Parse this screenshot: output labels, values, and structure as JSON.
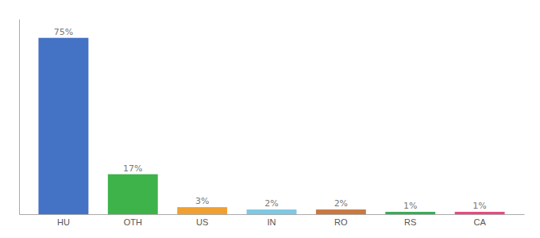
{
  "chart_data": {
    "type": "bar",
    "categories": [
      "HU",
      "OTH",
      "US",
      "IN",
      "RO",
      "RS",
      "CA"
    ],
    "values": [
      75,
      17,
      3,
      2,
      2,
      1,
      1
    ],
    "colors": [
      "#4472c4",
      "#3db34a",
      "#f0a030",
      "#7ec8e3",
      "#c87840",
      "#3aaa55",
      "#e8487c"
    ],
    "ylim": [
      0,
      83
    ],
    "data_labels": true,
    "value_labels": [
      "75%",
      "17%",
      "3%",
      "2%",
      "2%",
      "1%",
      "1%"
    ],
    "tick_labels": "x"
  }
}
